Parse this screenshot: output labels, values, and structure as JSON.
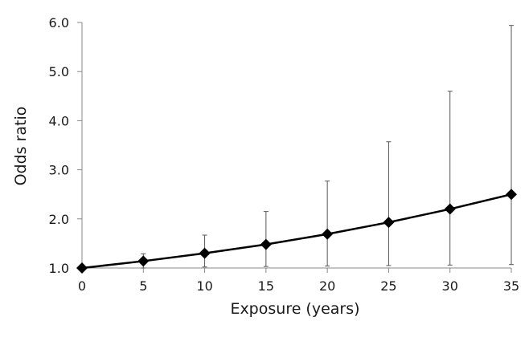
{
  "chart_data": {
    "type": "line",
    "title": "",
    "xlabel": "Exposure (years)",
    "ylabel": "Odds ratio",
    "xlim": [
      0,
      35
    ],
    "ylim": [
      1.0,
      6.0
    ],
    "x_ticks": [
      "0",
      "5",
      "10",
      "15",
      "20",
      "25",
      "30",
      "35"
    ],
    "y_ticks": [
      "1.0",
      "2.0",
      "3.0",
      "4.0",
      "5.0",
      "6.0"
    ],
    "x_tick_values": [
      0,
      5,
      10,
      15,
      20,
      25,
      30,
      35
    ],
    "y_tick_values": [
      1,
      2,
      3,
      4,
      5,
      6
    ],
    "grid": false,
    "legend": "none",
    "marker": "diamond",
    "line_color": "#000000",
    "errorbar_color": "#555555",
    "series": [
      {
        "x": [
          0,
          5,
          10,
          15,
          20,
          25,
          30,
          35
        ],
        "y": [
          1.0,
          1.14,
          1.3,
          1.48,
          1.69,
          1.93,
          2.2,
          2.5
        ],
        "y_lower": [
          1.0,
          1.0,
          1.02,
          1.03,
          1.04,
          1.05,
          1.06,
          1.07
        ],
        "y_upper": [
          1.0,
          1.29,
          1.67,
          2.15,
          2.77,
          3.57,
          4.6,
          5.94
        ]
      }
    ]
  }
}
